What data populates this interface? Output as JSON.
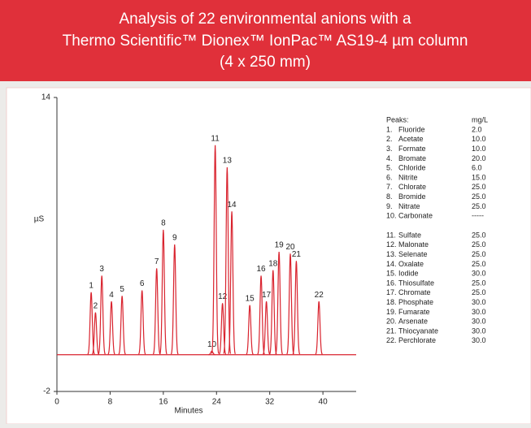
{
  "chart_data": {
    "type": "chromatogram",
    "title": [
      "Analysis of 22 environmental anions with a",
      "Thermo Scientific™ Dionex™ IonPac™ AS19-4 µm column",
      "(4 x 250 mm)"
    ],
    "xlabel": "Minutes",
    "ylabel": "µS",
    "xlim": [
      0,
      45
    ],
    "ylim": [
      -2,
      14
    ],
    "xticks": [
      0,
      8,
      16,
      24,
      32,
      40
    ],
    "yticks": [
      -2,
      14
    ],
    "color": "#d9232e",
    "baseline": 0,
    "peak_labels": [
      "1",
      "2",
      "3",
      "4",
      "5",
      "6",
      "7",
      "8",
      "9",
      "10",
      "11",
      "12",
      "13",
      "14",
      "15",
      "16",
      "17",
      "18",
      "19",
      "20",
      "21",
      "22"
    ],
    "x": [
      5.15,
      5.8,
      6.75,
      8.2,
      9.8,
      12.8,
      15.0,
      16.0,
      17.7,
      23.3,
      23.8,
      24.9,
      25.6,
      26.3,
      29.0,
      30.7,
      31.5,
      32.5,
      33.4,
      35.1,
      36.0,
      39.4
    ],
    "values": [
      3.4,
      2.3,
      4.3,
      2.9,
      3.2,
      3.5,
      4.7,
      6.8,
      6.0,
      0.2,
      11.4,
      2.8,
      10.2,
      7.8,
      2.7,
      4.3,
      2.9,
      4.6,
      5.6,
      5.5,
      5.1,
      2.9
    ]
  },
  "peaks_table": {
    "header": [
      "Peaks:",
      "mg/L"
    ],
    "groups": [
      [
        [
          "1.",
          "Fluoride",
          "2.0"
        ],
        [
          "2.",
          "Acetate",
          "10.0"
        ],
        [
          "3.",
          "Formate",
          "10.0"
        ],
        [
          "4.",
          "Bromate",
          "20.0"
        ],
        [
          "5.",
          "Chloride",
          "6.0"
        ],
        [
          "6.",
          "Nitrite",
          "15.0"
        ],
        [
          "7.",
          "Chlorate",
          "25.0"
        ],
        [
          "8.",
          "Bromide",
          "25.0"
        ],
        [
          "9.",
          "Nitrate",
          "25.0"
        ],
        [
          "10.",
          "Carbonate",
          "-----"
        ]
      ],
      [
        [
          "11.",
          "Sulfate",
          "25.0"
        ],
        [
          "12.",
          "Malonate",
          "25.0"
        ],
        [
          "13.",
          "Selenate",
          "25.0"
        ],
        [
          "14.",
          "Oxalate",
          "25.0"
        ],
        [
          "15.",
          "Iodide",
          "30.0"
        ],
        [
          "16.",
          "Thiosulfate",
          "25.0"
        ],
        [
          "17.",
          "Chromate",
          "25.0"
        ],
        [
          "18.",
          "Phosphate",
          "30.0"
        ],
        [
          "19.",
          "Fumarate",
          "30.0"
        ],
        [
          "20.",
          "Arsenate",
          "30.0"
        ],
        [
          "21.",
          "Thiocyanate",
          "30.0"
        ],
        [
          "22.",
          "Perchlorate",
          "30.0"
        ]
      ]
    ]
  }
}
